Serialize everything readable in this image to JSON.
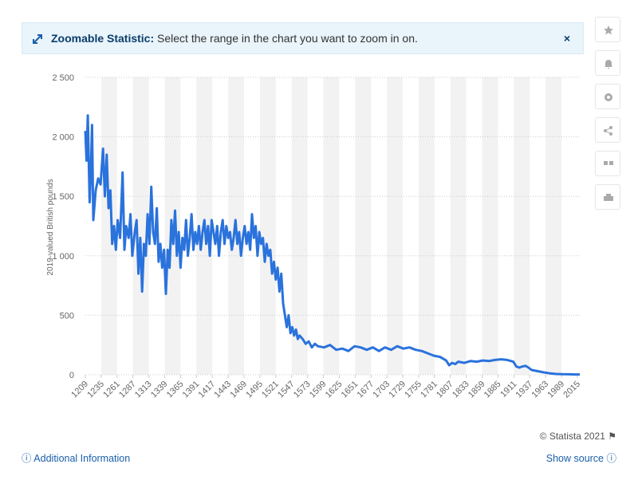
{
  "ui": {
    "banner_title": "Zoomable Statistic:",
    "banner_text": "Select the range in the chart you want to zoom in on.",
    "credit": "© Statista 2021",
    "additional_info": "Additional Information",
    "show_source": "Show source"
  },
  "chart_data": {
    "type": "line",
    "y_label": "2019-valued British pounds",
    "x": [
      1209,
      1211,
      1213,
      1216,
      1218,
      1220,
      1222,
      1226,
      1230,
      1234,
      1238,
      1241,
      1244,
      1247,
      1250,
      1253,
      1256,
      1259,
      1262,
      1266,
      1270,
      1273,
      1276,
      1280,
      1283,
      1286,
      1290,
      1293,
      1296,
      1299,
      1302,
      1305,
      1308,
      1311,
      1314,
      1317,
      1320,
      1323,
      1326,
      1329,
      1332,
      1335,
      1338,
      1341,
      1344,
      1347,
      1350,
      1353,
      1356,
      1359,
      1362,
      1365,
      1368,
      1371,
      1374,
      1377,
      1380,
      1383,
      1386,
      1389,
      1392,
      1395,
      1398,
      1401,
      1404,
      1407,
      1410,
      1413,
      1416,
      1419,
      1422,
      1425,
      1428,
      1431,
      1434,
      1437,
      1440,
      1443,
      1446,
      1449,
      1452,
      1455,
      1458,
      1461,
      1464,
      1467,
      1470,
      1473,
      1476,
      1479,
      1482,
      1485,
      1488,
      1491,
      1494,
      1497,
      1500,
      1503,
      1506,
      1509,
      1512,
      1515,
      1518,
      1521,
      1524,
      1527,
      1530,
      1533,
      1536,
      1539,
      1542,
      1545,
      1548,
      1551,
      1554,
      1557,
      1560,
      1565,
      1570,
      1575,
      1580,
      1585,
      1590,
      1600,
      1610,
      1620,
      1630,
      1640,
      1650,
      1660,
      1670,
      1680,
      1690,
      1700,
      1710,
      1720,
      1730,
      1740,
      1750,
      1760,
      1770,
      1780,
      1790,
      1800,
      1805,
      1810,
      1815,
      1820,
      1830,
      1840,
      1850,
      1860,
      1870,
      1880,
      1890,
      1900,
      1910,
      1915,
      1920,
      1925,
      1930,
      1935,
      1940,
      1950,
      1960,
      1970,
      1980,
      1990,
      2000,
      2010,
      2019
    ],
    "series": [
      {
        "name": "2019-valued British pounds",
        "color": "#2a72dc",
        "values": [
          2050,
          1800,
          2180,
          1450,
          1700,
          2100,
          1300,
          1550,
          1650,
          1600,
          1900,
          1500,
          1850,
          1400,
          1550,
          1100,
          1250,
          1050,
          1300,
          1150,
          1700,
          1050,
          1250,
          1150,
          1350,
          1000,
          1200,
          1300,
          850,
          1150,
          700,
          1100,
          1000,
          1350,
          1100,
          1580,
          1200,
          1100,
          1400,
          950,
          1100,
          900,
          1050,
          680,
          1050,
          900,
          1300,
          1100,
          1380,
          1000,
          1200,
          900,
          1150,
          1050,
          1300,
          1000,
          1150,
          1350,
          1050,
          1200,
          1100,
          1250,
          1050,
          1200,
          1300,
          1100,
          1250,
          1000,
          1300,
          1200,
          1100,
          1250,
          1000,
          1200,
          1300,
          1100,
          1250,
          1150,
          1200,
          1050,
          1150,
          1300,
          1100,
          1200,
          1000,
          1150,
          1250,
          1100,
          1200,
          1050,
          1350,
          1150,
          1250,
          1000,
          1200,
          1100,
          1150,
          950,
          1100,
          1000,
          1050,
          850,
          950,
          800,
          900,
          700,
          850,
          600,
          500,
          400,
          500,
          350,
          400,
          330,
          380,
          300,
          330,
          300,
          260,
          280,
          230,
          260,
          240,
          230,
          250,
          210,
          220,
          200,
          240,
          230,
          210,
          230,
          200,
          230,
          210,
          240,
          220,
          230,
          210,
          200,
          180,
          160,
          150,
          120,
          80,
          100,
          90,
          110,
          100,
          115,
          110,
          120,
          115,
          125,
          130,
          125,
          110,
          70,
          60,
          70,
          75,
          60,
          40,
          30,
          20,
          12,
          7,
          5,
          4,
          3,
          3
        ]
      }
    ],
    "xlim": [
      1209,
      2019
    ],
    "xticks": [
      1209,
      1235,
      1261,
      1287,
      1313,
      1339,
      1365,
      1391,
      1417,
      1443,
      1469,
      1495,
      1521,
      1547,
      1573,
      1599,
      1625,
      1651,
      1677,
      1703,
      1729,
      1755,
      1781,
      1807,
      1833,
      1859,
      1885,
      1911,
      1937,
      1963,
      1989,
      2015
    ],
    "ylim": [
      0,
      2500
    ],
    "yticks": [
      0,
      500,
      {
        "value": 1000,
        "label": "1 000"
      },
      {
        "value": 1500,
        "label": "1 500"
      },
      {
        "value": 2000,
        "label": "2 000"
      },
      {
        "value": 2500,
        "label": "2 500"
      }
    ],
    "grid": true
  }
}
